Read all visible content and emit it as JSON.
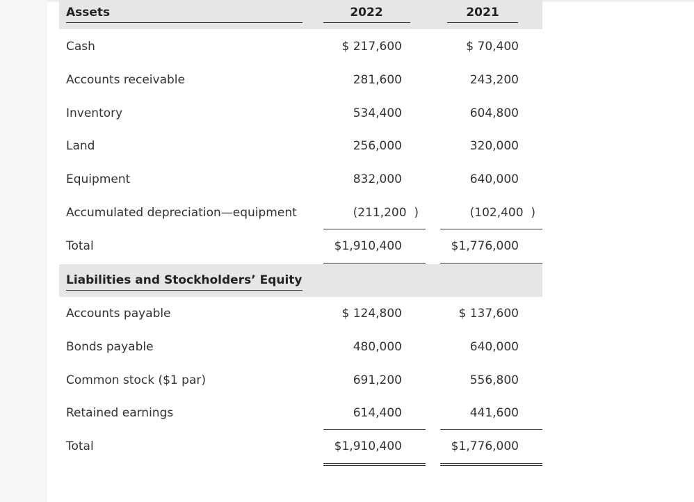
{
  "sections": [
    {
      "header": [
        "Assets",
        "2022",
        "2021"
      ],
      "rows": [
        [
          "Cash",
          "$ 217,600",
          "$ 70,400"
        ],
        [
          "Accounts receivable",
          "281,600",
          "243,200"
        ],
        [
          "Inventory",
          "534,400",
          "604,800"
        ],
        [
          "Land",
          "256,000",
          "320,000"
        ],
        [
          "Equipment",
          "832,000",
          "640,000"
        ],
        [
          "Accumulated depreciation—equipment",
          "(211,200  )",
          "(102,400  )"
        ],
        [
          "Total",
          "$1,910,400",
          "$1,776,000"
        ]
      ]
    },
    {
      "header": [
        "Liabilities and Stockholders’ Equity"
      ],
      "rows": [
        [
          "Accounts payable",
          "$ 124,800",
          "$ 137,600"
        ],
        [
          "Bonds payable",
          "480,000",
          "640,000"
        ],
        [
          "Common stock ($1 par)",
          "691,200",
          "556,800"
        ],
        [
          "Retained earnings",
          "614,400",
          "441,600"
        ],
        [
          "Total",
          "$1,910,400",
          "$1,776,000"
        ]
      ]
    }
  ]
}
